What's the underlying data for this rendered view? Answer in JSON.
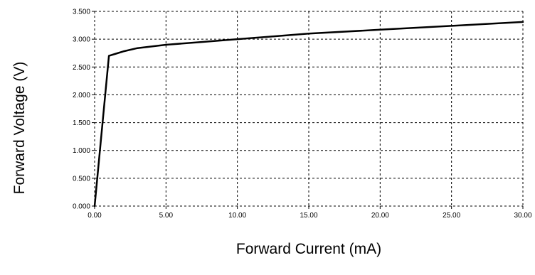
{
  "chart_data": {
    "type": "line",
    "title": "",
    "xlabel": "Forward Current (mA)",
    "ylabel": "Forward Voltage (V)",
    "xlim": [
      0,
      30
    ],
    "ylim": [
      0,
      3.5
    ],
    "x_ticks": [
      0,
      5,
      10,
      15,
      20,
      25,
      30
    ],
    "x_tick_labels": [
      "0.00",
      "5.00",
      "10.00",
      "15.00",
      "20.00",
      "25.00",
      "30.00"
    ],
    "y_ticks": [
      0,
      0.5,
      1.0,
      1.5,
      2.0,
      2.5,
      3.0,
      3.5
    ],
    "y_tick_labels": [
      "0.000",
      "0.500",
      "1.000",
      "1.500",
      "2.000",
      "2.500",
      "3.000",
      "3.500"
    ],
    "grid": true,
    "grid_style": "dashed",
    "line_color": "#000000",
    "series": [
      {
        "x": [
          0,
          1.0,
          1.5,
          2.0,
          3.0,
          5.0,
          7.5,
          10.0,
          12.5,
          15.0,
          20.0,
          25.0,
          30.0
        ],
        "y": [
          0,
          2.7,
          2.74,
          2.78,
          2.84,
          2.9,
          2.95,
          3.0,
          3.05,
          3.1,
          3.17,
          3.24,
          3.31
        ]
      }
    ]
  }
}
